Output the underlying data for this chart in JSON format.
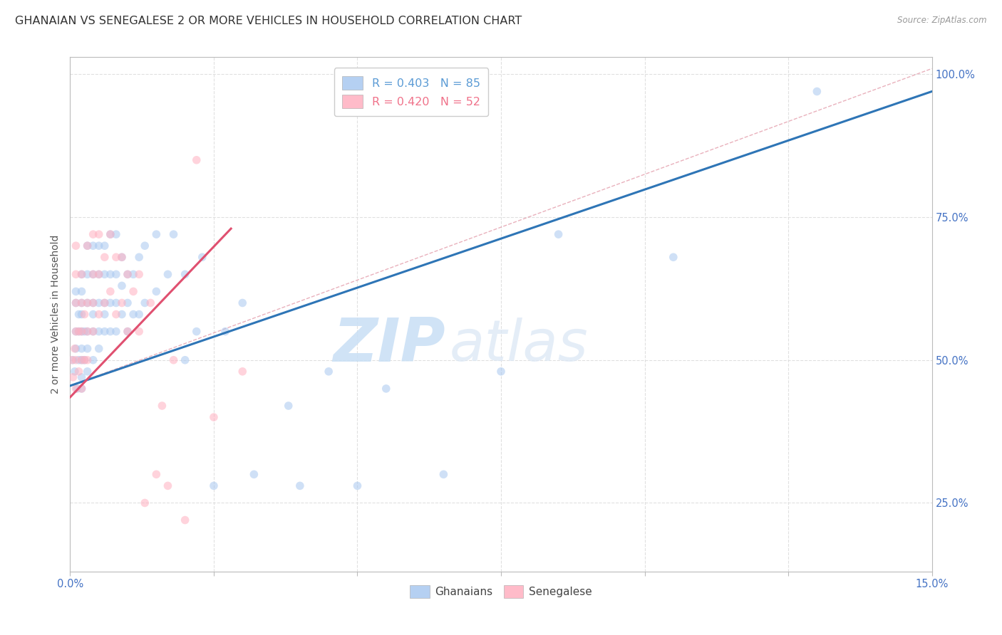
{
  "title": "GHANAIAN VS SENEGALESE 2 OR MORE VEHICLES IN HOUSEHOLD CORRELATION CHART",
  "source": "Source: ZipAtlas.com",
  "ylabel": "2 or more Vehicles in Household",
  "xlim": [
    0.0,
    0.15
  ],
  "ylim": [
    0.13,
    1.03
  ],
  "xticks": [
    0.0,
    0.025,
    0.05,
    0.075,
    0.1,
    0.125,
    0.15
  ],
  "xticklabels": [
    "0.0%",
    "",
    "",
    "",
    "",
    "",
    "15.0%"
  ],
  "yticks": [
    0.25,
    0.5,
    0.75,
    1.0
  ],
  "yticklabels": [
    "25.0%",
    "50.0%",
    "75.0%",
    "100.0%"
  ],
  "legend_items": [
    {
      "label": "R = 0.403   N = 85",
      "color": "#5b9bd5"
    },
    {
      "label": "R = 0.420   N = 52",
      "color": "#f0728a"
    }
  ],
  "ghanaian_color": "#a8c8f0",
  "senegalese_color": "#ffb0c0",
  "blue_line_color": "#2e75b6",
  "pink_line_color": "#e05070",
  "ref_line_color": "#e090a0",
  "background_color": "#ffffff",
  "grid_color": "#e0e0e0",
  "tick_label_color": "#4472c4",
  "watermark_zip": "ZIP",
  "watermark_atlas": "atlas",
  "ghanaian_scatter_x": [
    0.0005,
    0.0008,
    0.001,
    0.001,
    0.001,
    0.001,
    0.0012,
    0.0015,
    0.0015,
    0.0015,
    0.002,
    0.002,
    0.002,
    0.002,
    0.002,
    0.002,
    0.002,
    0.002,
    0.002,
    0.0025,
    0.0025,
    0.003,
    0.003,
    0.003,
    0.003,
    0.003,
    0.003,
    0.004,
    0.004,
    0.004,
    0.004,
    0.004,
    0.004,
    0.005,
    0.005,
    0.005,
    0.005,
    0.005,
    0.006,
    0.006,
    0.006,
    0.006,
    0.006,
    0.007,
    0.007,
    0.007,
    0.007,
    0.008,
    0.008,
    0.008,
    0.008,
    0.009,
    0.009,
    0.009,
    0.01,
    0.01,
    0.01,
    0.011,
    0.011,
    0.012,
    0.012,
    0.013,
    0.013,
    0.015,
    0.015,
    0.017,
    0.018,
    0.02,
    0.02,
    0.022,
    0.023,
    0.025,
    0.027,
    0.03,
    0.032,
    0.038,
    0.04,
    0.045,
    0.05,
    0.055,
    0.065,
    0.075,
    0.085,
    0.105,
    0.13
  ],
  "ghanaian_scatter_y": [
    0.5,
    0.48,
    0.52,
    0.55,
    0.6,
    0.62,
    0.45,
    0.5,
    0.55,
    0.58,
    0.45,
    0.47,
    0.5,
    0.52,
    0.55,
    0.58,
    0.6,
    0.62,
    0.65,
    0.5,
    0.55,
    0.48,
    0.52,
    0.55,
    0.6,
    0.65,
    0.7,
    0.5,
    0.55,
    0.58,
    0.6,
    0.65,
    0.7,
    0.52,
    0.55,
    0.6,
    0.65,
    0.7,
    0.55,
    0.58,
    0.6,
    0.65,
    0.7,
    0.55,
    0.6,
    0.65,
    0.72,
    0.55,
    0.6,
    0.65,
    0.72,
    0.58,
    0.63,
    0.68,
    0.55,
    0.6,
    0.65,
    0.58,
    0.65,
    0.58,
    0.68,
    0.6,
    0.7,
    0.62,
    0.72,
    0.65,
    0.72,
    0.5,
    0.65,
    0.55,
    0.68,
    0.28,
    0.55,
    0.6,
    0.3,
    0.42,
    0.28,
    0.48,
    0.28,
    0.45,
    0.3,
    0.48,
    0.72,
    0.68,
    0.97
  ],
  "senegalese_scatter_x": [
    0.0003,
    0.0005,
    0.0008,
    0.001,
    0.001,
    0.001,
    0.001,
    0.001,
    0.001,
    0.0015,
    0.0015,
    0.002,
    0.002,
    0.002,
    0.002,
    0.002,
    0.0025,
    0.0025,
    0.003,
    0.003,
    0.003,
    0.003,
    0.004,
    0.004,
    0.004,
    0.004,
    0.005,
    0.005,
    0.005,
    0.006,
    0.006,
    0.007,
    0.007,
    0.008,
    0.008,
    0.009,
    0.009,
    0.01,
    0.01,
    0.011,
    0.012,
    0.012,
    0.013,
    0.014,
    0.015,
    0.016,
    0.017,
    0.018,
    0.02,
    0.022,
    0.025,
    0.03
  ],
  "senegalese_scatter_y": [
    0.5,
    0.47,
    0.52,
    0.45,
    0.5,
    0.55,
    0.6,
    0.65,
    0.7,
    0.48,
    0.55,
    0.45,
    0.5,
    0.55,
    0.6,
    0.65,
    0.5,
    0.58,
    0.5,
    0.55,
    0.6,
    0.7,
    0.55,
    0.6,
    0.65,
    0.72,
    0.58,
    0.65,
    0.72,
    0.6,
    0.68,
    0.62,
    0.72,
    0.58,
    0.68,
    0.6,
    0.68,
    0.55,
    0.65,
    0.62,
    0.55,
    0.65,
    0.25,
    0.6,
    0.3,
    0.42,
    0.28,
    0.5,
    0.22,
    0.85,
    0.4,
    0.48
  ],
  "blue_line_x": [
    0.0,
    0.15
  ],
  "blue_line_y": [
    0.455,
    0.97
  ],
  "pink_line_x": [
    0.0,
    0.028
  ],
  "pink_line_y": [
    0.435,
    0.73
  ],
  "ref_line_x": [
    0.0,
    0.15
  ],
  "ref_line_y": [
    0.455,
    1.01
  ],
  "marker_size": 70,
  "marker_alpha": 0.55,
  "title_fontsize": 11.5,
  "axis_label_fontsize": 10,
  "tick_fontsize": 10.5
}
